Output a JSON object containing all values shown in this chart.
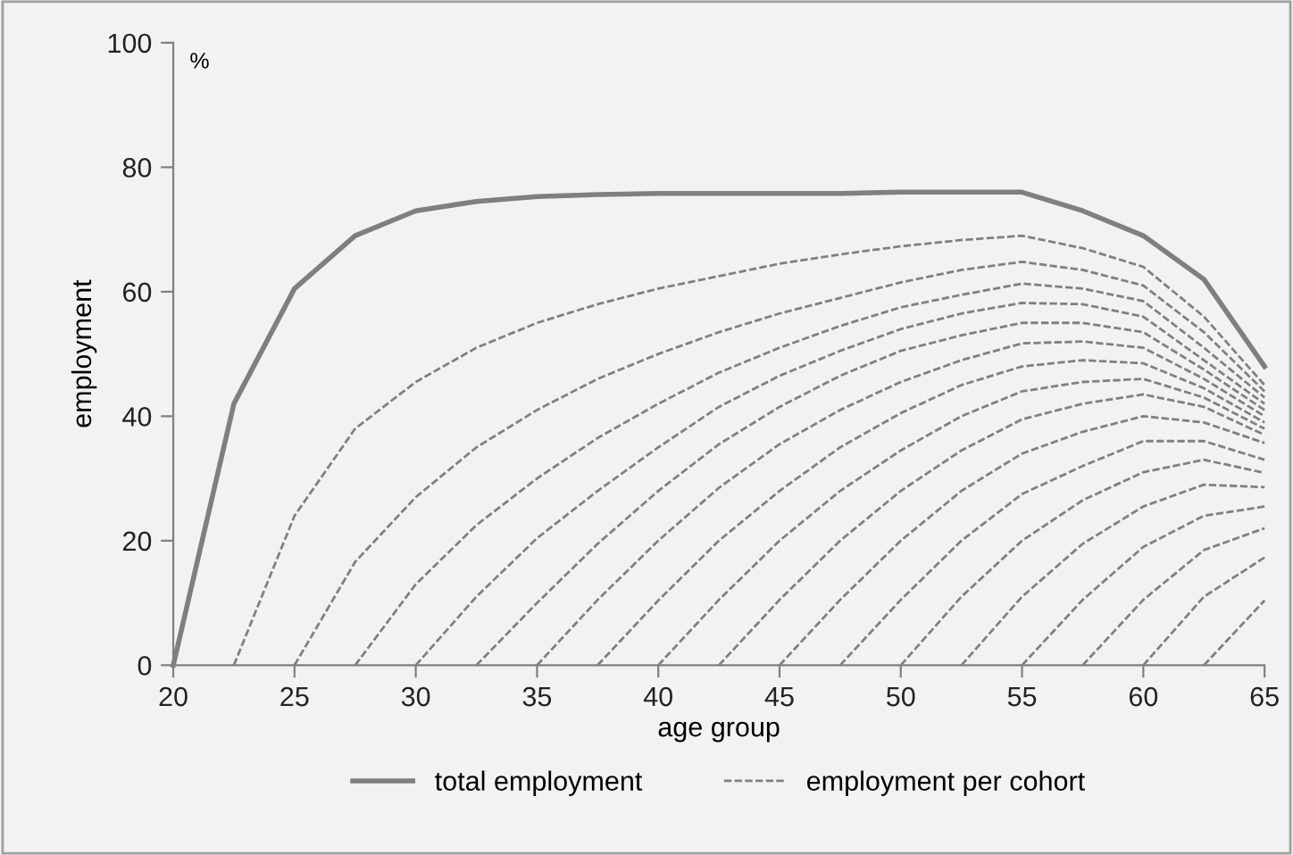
{
  "chart_data": {
    "type": "line",
    "xlabel": "age group",
    "ylabel": "employment",
    "annotations": [
      "%"
    ],
    "xlim": [
      20,
      65
    ],
    "xticks": [
      20,
      25,
      30,
      35,
      40,
      45,
      50,
      55,
      60,
      65
    ],
    "ylim": [
      0,
      100
    ],
    "yticks": [
      0,
      20,
      40,
      60,
      80,
      100
    ],
    "grid": false,
    "legend": "bottom",
    "marker": "none",
    "series": [
      {
        "name": "total employment",
        "color": "#7f7f7f",
        "line_style": "solid",
        "x": [
          20,
          22.5,
          25,
          27.5,
          30,
          32.5,
          35,
          37.5,
          40,
          42.5,
          45,
          47.5,
          50,
          52.5,
          55,
          57.5,
          60,
          62.5,
          65
        ],
        "values": [
          0,
          42,
          60.5,
          69,
          73,
          74.5,
          75.3,
          75.6,
          75.8,
          75.8,
          75.8,
          75.8,
          76,
          76,
          76,
          73,
          69,
          62,
          48
        ]
      },
      {
        "name": "employment per cohort",
        "color": "#808080",
        "line_style": "dashed",
        "x": [
          22.5,
          25,
          27.5,
          30,
          32.5,
          35,
          37.5,
          40,
          42.5,
          45,
          47.5,
          50,
          52.5,
          55,
          57.5,
          60,
          62.5,
          65
        ],
        "values": [
          0,
          24,
          38,
          45.5,
          51,
          55,
          58,
          60.5,
          62.5,
          64.5,
          66,
          67.3,
          68.3,
          69,
          67,
          64,
          56,
          45
        ]
      },
      {
        "color": "#808080",
        "line_style": "dashed",
        "x": [
          25,
          27.5,
          30,
          32.5,
          35,
          37.5,
          40,
          42.5,
          45,
          47.5,
          50,
          52.5,
          55,
          57.5,
          60,
          62.5,
          65
        ],
        "values": [
          0,
          16.6,
          27,
          35,
          41,
          46,
          50,
          53.5,
          56.5,
          59,
          61.5,
          63.5,
          64.8,
          63.5,
          61,
          53.5,
          44
        ]
      },
      {
        "color": "#808080",
        "line_style": "dashed",
        "x": [
          27.5,
          30,
          32.5,
          35,
          37.5,
          40,
          42.5,
          45,
          47.5,
          50,
          52.5,
          55,
          57.5,
          60,
          62.5,
          65
        ],
        "values": [
          0,
          13,
          22.5,
          30,
          36.5,
          42,
          47,
          51,
          54.5,
          57.5,
          59.5,
          61.3,
          60.5,
          58.5,
          51,
          43
        ]
      },
      {
        "color": "#808080",
        "line_style": "dashed",
        "x": [
          30,
          32.5,
          35,
          37.5,
          40,
          42.5,
          45,
          47.5,
          50,
          52.5,
          55,
          57.5,
          60,
          62.5,
          65
        ],
        "values": [
          0,
          11,
          20.4,
          28,
          35,
          41.5,
          46.5,
          50.5,
          54,
          56.5,
          58.2,
          58,
          56,
          49,
          42
        ]
      },
      {
        "color": "#808080",
        "line_style": "dashed",
        "x": [
          32.5,
          35,
          37.5,
          40,
          42.5,
          45,
          47.5,
          50,
          52.5,
          55,
          57.5,
          60,
          62.5,
          65
        ],
        "values": [
          0,
          10,
          19.5,
          28,
          35.5,
          41.5,
          46.5,
          50.5,
          53,
          55,
          55,
          53.5,
          47.5,
          41
        ]
      },
      {
        "color": "#808080",
        "line_style": "dashed",
        "x": [
          35,
          37.5,
          40,
          42.5,
          45,
          47.5,
          50,
          52.5,
          55,
          57.5,
          60,
          62.5,
          65
        ],
        "values": [
          0,
          10.5,
          20,
          28.5,
          35.5,
          41,
          45.5,
          49,
          51.7,
          52,
          51,
          46,
          40
        ]
      },
      {
        "color": "#808080",
        "line_style": "dashed",
        "x": [
          37.5,
          40,
          42.5,
          45,
          47.5,
          50,
          52.5,
          55,
          57.5,
          60,
          62.5,
          65
        ],
        "values": [
          0,
          10.4,
          20,
          28,
          35,
          40.5,
          45,
          48,
          49,
          48.5,
          44.5,
          39
        ]
      },
      {
        "color": "#808080",
        "line_style": "dashed",
        "x": [
          40,
          42.5,
          45,
          47.5,
          50,
          52.5,
          55,
          57.5,
          60,
          62.5,
          65
        ],
        "values": [
          0,
          10.5,
          20,
          28,
          34.5,
          40,
          44,
          45.5,
          46,
          43,
          38
        ]
      },
      {
        "color": "#808080",
        "line_style": "dashed",
        "x": [
          42.5,
          45,
          47.5,
          50,
          52.5,
          55,
          57.5,
          60,
          62.5,
          65
        ],
        "values": [
          0,
          10.5,
          20,
          28,
          34.5,
          39.5,
          42,
          43.5,
          41.5,
          37
        ]
      },
      {
        "color": "#808080",
        "line_style": "dashed",
        "x": [
          45,
          47.5,
          50,
          52.5,
          55,
          57.5,
          60,
          62.5,
          65
        ],
        "values": [
          0,
          10.5,
          20,
          28,
          34,
          37.5,
          40,
          39,
          35.7
        ]
      },
      {
        "color": "#808080",
        "line_style": "dashed",
        "x": [
          47.5,
          50,
          52.5,
          55,
          57.5,
          60,
          62.5,
          65
        ],
        "values": [
          0,
          10.5,
          20,
          27.5,
          32,
          36,
          36,
          33
        ]
      },
      {
        "color": "#808080",
        "line_style": "dashed",
        "x": [
          50,
          52.5,
          55,
          57.5,
          60,
          62.5,
          65
        ],
        "values": [
          0,
          11,
          20,
          26.5,
          31,
          33,
          30.9
        ]
      },
      {
        "color": "#808080",
        "line_style": "dashed",
        "x": [
          52.5,
          55,
          57.5,
          60,
          62.5,
          65
        ],
        "values": [
          0,
          11,
          19.5,
          25.5,
          29,
          28.6
        ]
      },
      {
        "color": "#808080",
        "line_style": "dashed",
        "x": [
          55,
          57.5,
          60,
          62.5,
          65
        ],
        "values": [
          0,
          10.5,
          19,
          24,
          25.5
        ]
      },
      {
        "color": "#808080",
        "line_style": "dashed",
        "x": [
          57.5,
          60,
          62.5,
          65
        ],
        "values": [
          0,
          10.5,
          18.5,
          22
        ]
      },
      {
        "color": "#808080",
        "line_style": "dashed",
        "x": [
          60,
          62.5,
          65
        ],
        "values": [
          0,
          11,
          17.3
        ]
      },
      {
        "color": "#808080",
        "line_style": "dashed",
        "x": [
          62.5,
          65
        ],
        "values": [
          0,
          10.4
        ]
      }
    ]
  }
}
